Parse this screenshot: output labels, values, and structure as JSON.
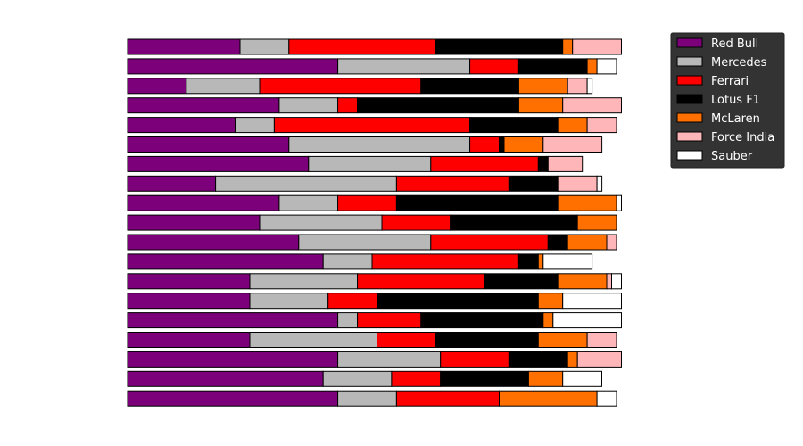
{
  "chart_data": {
    "type": "bar",
    "orientation": "horizontal",
    "stacked": true,
    "title": "",
    "xlabel": "",
    "ylabel": "",
    "xlim": [
      0,
      100
    ],
    "axes_visible": false,
    "grid": false,
    "legend_position": "top-right",
    "series": [
      {
        "name": "Red Bull",
        "color": "#7b0079",
        "values": [
          23,
          43,
          12,
          31,
          22,
          33,
          37,
          18,
          31,
          27,
          35,
          40,
          25,
          25,
          43,
          25,
          43,
          40,
          43
        ]
      },
      {
        "name": "Mercedes",
        "color": "#b8b8b8",
        "values": [
          10,
          27,
          15,
          12,
          8,
          37,
          25,
          37,
          12,
          25,
          27,
          10,
          22,
          16,
          4,
          26,
          21,
          14,
          12
        ]
      },
      {
        "name": "Ferrari",
        "color": "#ff0000",
        "values": [
          30,
          10,
          33,
          4,
          40,
          6,
          22,
          23,
          12,
          14,
          24,
          30,
          26,
          10,
          13,
          12,
          14,
          10,
          21
        ]
      },
      {
        "name": "Lotus F1",
        "color": "#000000",
        "values": [
          26,
          14,
          20,
          33,
          18,
          1,
          2,
          10,
          33,
          26,
          4,
          4,
          15,
          33,
          25,
          21,
          12,
          18,
          0
        ]
      },
      {
        "name": "McLaren",
        "color": "#ff7000",
        "values": [
          2,
          2,
          10,
          9,
          6,
          8,
          0,
          0,
          12,
          8,
          8,
          1,
          10,
          5,
          2,
          10,
          2,
          7,
          20
        ]
      },
      {
        "name": "Force India",
        "color": "#ffb6b8",
        "values": [
          10,
          0,
          4,
          12,
          6,
          12,
          7,
          8,
          0,
          0,
          2,
          0,
          1,
          0,
          0,
          6,
          9,
          0,
          0
        ]
      },
      {
        "name": "Sauber",
        "color": "#ffffff",
        "values": [
          0,
          4,
          1,
          0,
          0,
          0,
          0,
          1,
          1,
          0,
          0,
          10,
          2,
          12,
          14,
          0,
          0,
          8,
          4
        ]
      }
    ]
  }
}
